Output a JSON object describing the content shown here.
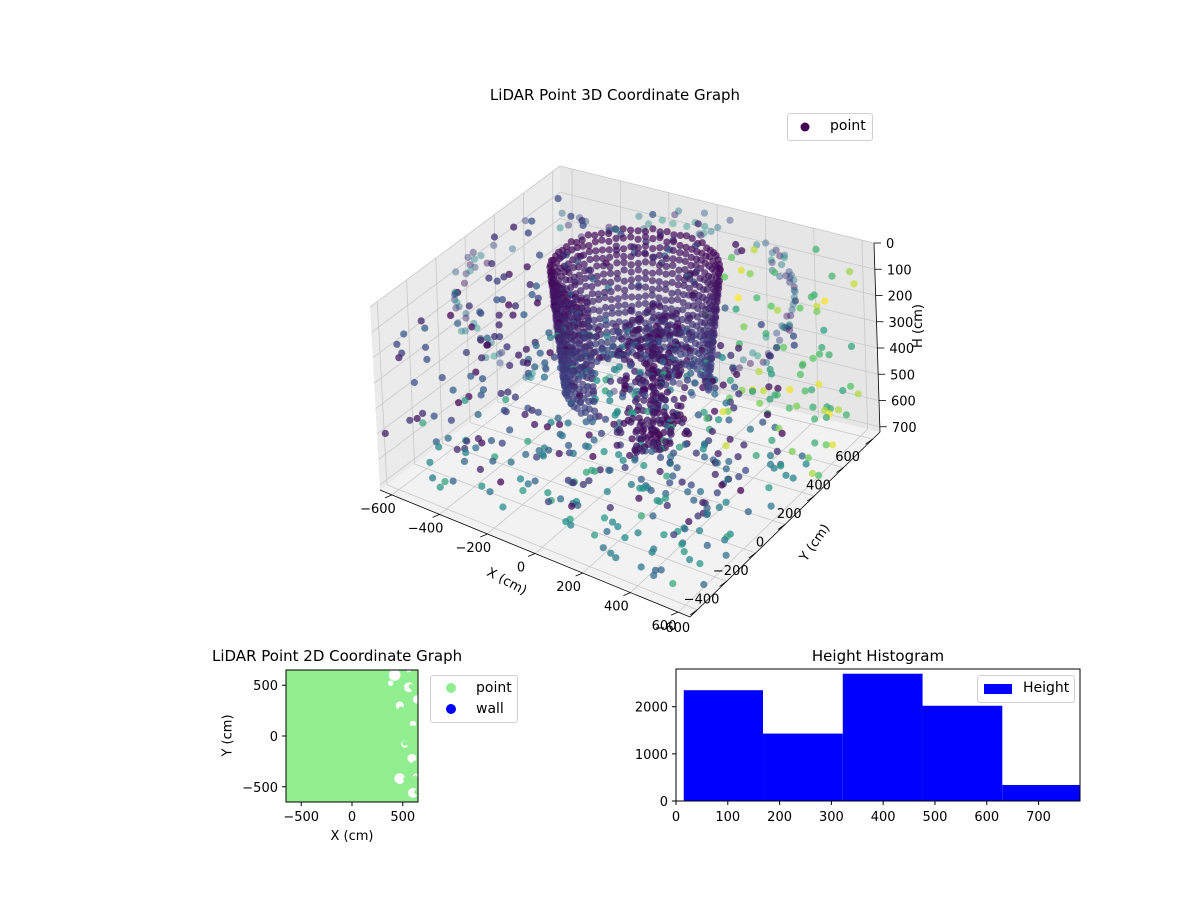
{
  "colors": {
    "axis": "#000000",
    "grid": "#b0b0b0",
    "pane_fill": "#f2f2f2",
    "pane_wall": "#e6e6e6",
    "point_legend": "#440154",
    "point_2d": "#90ee90",
    "wall_2d": "#0000ff",
    "hist_bar": "#0000ff"
  },
  "chart_data": [
    {
      "type": "scatter3d",
      "title": "LiDAR Point 3D Coordinate Graph",
      "xlabel": "X (cm)",
      "ylabel": "Y (cm)",
      "zlabel": "H (cm)",
      "xticks": [
        -600,
        -400,
        -200,
        0,
        200,
        400,
        600
      ],
      "yticks": [
        -600,
        -400,
        -200,
        0,
        200,
        400,
        600
      ],
      "zticks": [
        0,
        100,
        200,
        300,
        400,
        500,
        600,
        700
      ],
      "xlim": [
        -650,
        650
      ],
      "ylim": [
        -650,
        650
      ],
      "zlim": [
        0,
        720
      ],
      "z_inverted": true,
      "colormap": "viridis",
      "legend": {
        "entries": [
          "point"
        ],
        "position": "top-right"
      },
      "grid": true
    },
    {
      "type": "scatter",
      "title": "LiDAR Point 2D Coordinate Graph",
      "xlabel": "X (cm)",
      "ylabel": "Y (cm)",
      "xticks": [
        -500,
        0,
        500
      ],
      "yticks": [
        -500,
        0,
        500
      ],
      "xlim": [
        -650,
        650
      ],
      "ylim": [
        -650,
        650
      ],
      "legend": {
        "entries": [
          "point",
          "wall"
        ],
        "position": "outside-right"
      },
      "series": [
        {
          "name": "point",
          "color": "#90ee90"
        },
        {
          "name": "wall",
          "color": "#0000ff"
        }
      ]
    },
    {
      "type": "bar",
      "title": "Height Histogram",
      "xticks": [
        0,
        100,
        200,
        300,
        400,
        500,
        600,
        700
      ],
      "yticks": [
        0,
        1000,
        2000
      ],
      "xlim": [
        0,
        780
      ],
      "ylim": [
        0,
        2800
      ],
      "bins": [
        {
          "x0": 15,
          "x1": 168,
          "count": 2350
        },
        {
          "x0": 168,
          "x1": 322,
          "count": 1430
        },
        {
          "x0": 322,
          "x1": 476,
          "count": 2700
        },
        {
          "x0": 476,
          "x1": 630,
          "count": 2020
        },
        {
          "x0": 630,
          "x1": 784,
          "count": 340
        }
      ],
      "legend": {
        "entries": [
          "Height"
        ],
        "position": "top-right"
      }
    }
  ]
}
